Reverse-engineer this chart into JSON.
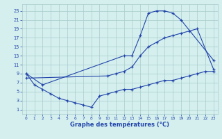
{
  "series": [
    {
      "x": [
        0,
        2,
        12,
        13,
        14,
        15,
        16,
        17,
        18,
        19,
        23
      ],
      "y": [
        9,
        6.5,
        13,
        13,
        17.5,
        22.5,
        23.0,
        23.0,
        22.5,
        21.0,
        12.0
      ]
    },
    {
      "x": [
        0,
        10,
        11,
        12,
        13,
        14,
        15,
        16,
        17,
        18,
        19,
        20,
        21,
        23
      ],
      "y": [
        8.0,
        8.5,
        9.0,
        9.5,
        10.5,
        13.0,
        15.0,
        16.0,
        17.0,
        17.5,
        18.0,
        18.5,
        19.0,
        10.0
      ]
    },
    {
      "x": [
        0,
        1,
        2,
        3,
        4,
        5,
        6,
        7,
        8,
        9,
        10,
        11,
        12,
        13,
        14,
        15,
        16,
        17,
        18,
        19,
        20,
        21,
        22,
        23
      ],
      "y": [
        9.0,
        6.5,
        5.5,
        4.5,
        3.5,
        3.0,
        2.5,
        2.0,
        1.5,
        4.0,
        4.5,
        5.0,
        5.5,
        5.5,
        6.0,
        6.5,
        7.0,
        7.5,
        7.5,
        8.0,
        8.5,
        9.0,
        9.5,
        9.5
      ]
    }
  ],
  "xlabel": "Graphe des températures (°C)",
  "xlim": [
    -0.5,
    23.5
  ],
  "ylim": [
    0,
    24.5
  ],
  "xticks": [
    0,
    1,
    2,
    3,
    4,
    5,
    6,
    7,
    8,
    9,
    10,
    11,
    12,
    13,
    14,
    15,
    16,
    17,
    18,
    19,
    20,
    21,
    22,
    23
  ],
  "yticks": [
    1,
    3,
    5,
    7,
    9,
    11,
    13,
    15,
    17,
    19,
    21,
    23
  ],
  "line_color": "#2244aa",
  "bg_color": "#d4efee",
  "grid_color": "#aacccc"
}
